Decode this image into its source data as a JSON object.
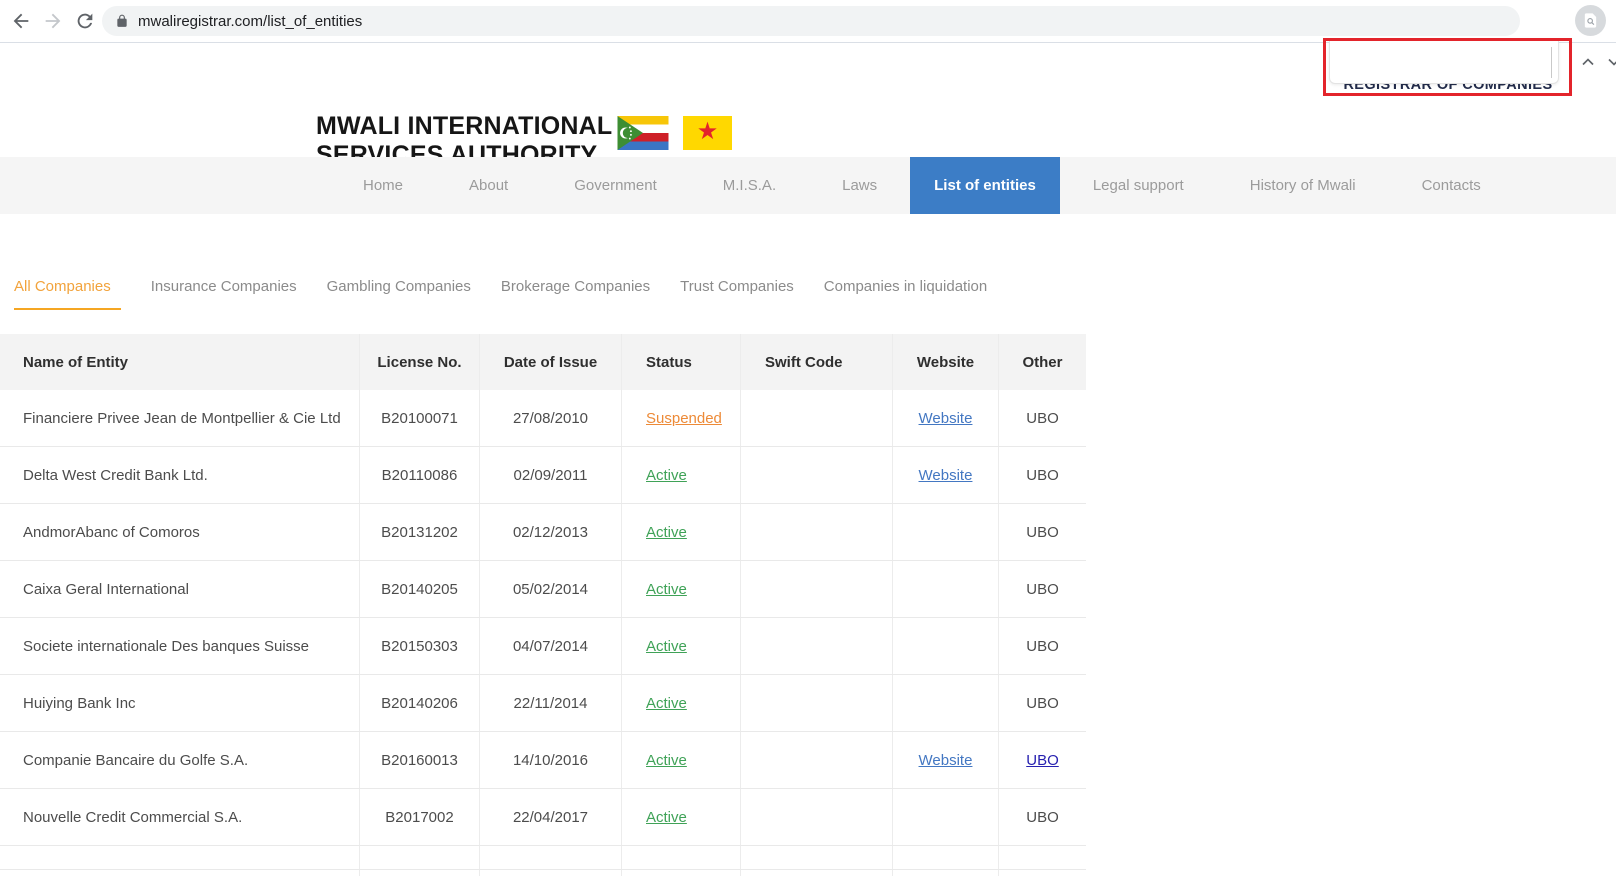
{
  "browser": {
    "url": "mwaliregistrar.com/list_of_entities",
    "back_icon": "back-arrow-icon",
    "forward_icon": "forward-arrow-icon",
    "reload_icon": "reload-icon",
    "lock_icon": "lock-icon",
    "extension_icon": "page-search-icon"
  },
  "find_annotation": {
    "obscured_text": "REGISTRAR OF COMPANIES",
    "highlight_color": "#e3242b",
    "prev_icon": "chevron-up-icon",
    "next_icon": "chevron-down-icon"
  },
  "site_header": {
    "title_line1": "MWALI INTERNATIONAL",
    "title_line2": "SERVICES AUTHORITY",
    "flags": [
      "comoros-flag",
      "mwali-red-star-flag"
    ]
  },
  "nav": {
    "active": "List of entities",
    "active_bg": "#3c7dc6",
    "items": [
      {
        "label": "Home"
      },
      {
        "label": "About"
      },
      {
        "label": "Government"
      },
      {
        "label": "M.I.S.A."
      },
      {
        "label": "Laws"
      },
      {
        "label": "List of entities"
      },
      {
        "label": "Legal support"
      },
      {
        "label": "History of Mwali"
      },
      {
        "label": "Contacts"
      }
    ]
  },
  "tabs": {
    "active": "All Companies",
    "active_color": "#f5a623",
    "items": [
      "All Companies",
      "Insurance Companies",
      "Gambling Companies",
      "Brokerage Companies",
      "Trust Companies",
      "Companies in liquidation"
    ]
  },
  "table": {
    "columns": [
      "Name of Entity",
      "License No.",
      "Date of Issue",
      "Status",
      "Swift Code",
      "Website",
      "Other"
    ],
    "status_colors": {
      "Active": "#3fa257",
      "Suspended": "#ed8a37"
    },
    "website_link_color": "#4377c2",
    "ubo_link_color": "#2721b0",
    "rows": [
      {
        "name": "Financiere Privee Jean de Montpellier & Cie Ltd",
        "license": "B20100071",
        "date": "27/08/2010",
        "status": "Suspended",
        "swift": "",
        "website": "Website",
        "other": "UBO",
        "other_is_link": false
      },
      {
        "name": "Delta West Credit Bank Ltd.",
        "license": "B20110086",
        "date": "02/09/2011",
        "status": "Active",
        "swift": "",
        "website": "Website",
        "other": "UBO",
        "other_is_link": false
      },
      {
        "name": "AndmorAbanc of Comoros",
        "license": "B20131202",
        "date": "02/12/2013",
        "status": "Active",
        "swift": "",
        "website": "",
        "other": "UBO",
        "other_is_link": false
      },
      {
        "name": "Caixa Geral International",
        "license": "B20140205",
        "date": "05/02/2014",
        "status": "Active",
        "swift": "",
        "website": "",
        "other": "UBO",
        "other_is_link": false
      },
      {
        "name": "Societe internationale Des banques Suisse",
        "license": "B20150303",
        "date": "04/07/2014",
        "status": "Active",
        "swift": "",
        "website": "",
        "other": "UBO",
        "other_is_link": false
      },
      {
        "name": "Huiying Bank Inc",
        "license": "B20140206",
        "date": "22/11/2014",
        "status": "Active",
        "swift": "",
        "website": "",
        "other": "UBO",
        "other_is_link": false
      },
      {
        "name": "Companie Bancaire du Golfe S.A.",
        "license": "B20160013",
        "date": "14/10/2016",
        "status": "Active",
        "swift": "",
        "website": "Website",
        "other": "UBO",
        "other_is_link": true
      },
      {
        "name": "Nouvelle Credit Commercial S.A.",
        "license": "B2017002",
        "date": "22/04/2017",
        "status": "Active",
        "swift": "",
        "website": "",
        "other": "UBO",
        "other_is_link": false
      }
    ]
  }
}
